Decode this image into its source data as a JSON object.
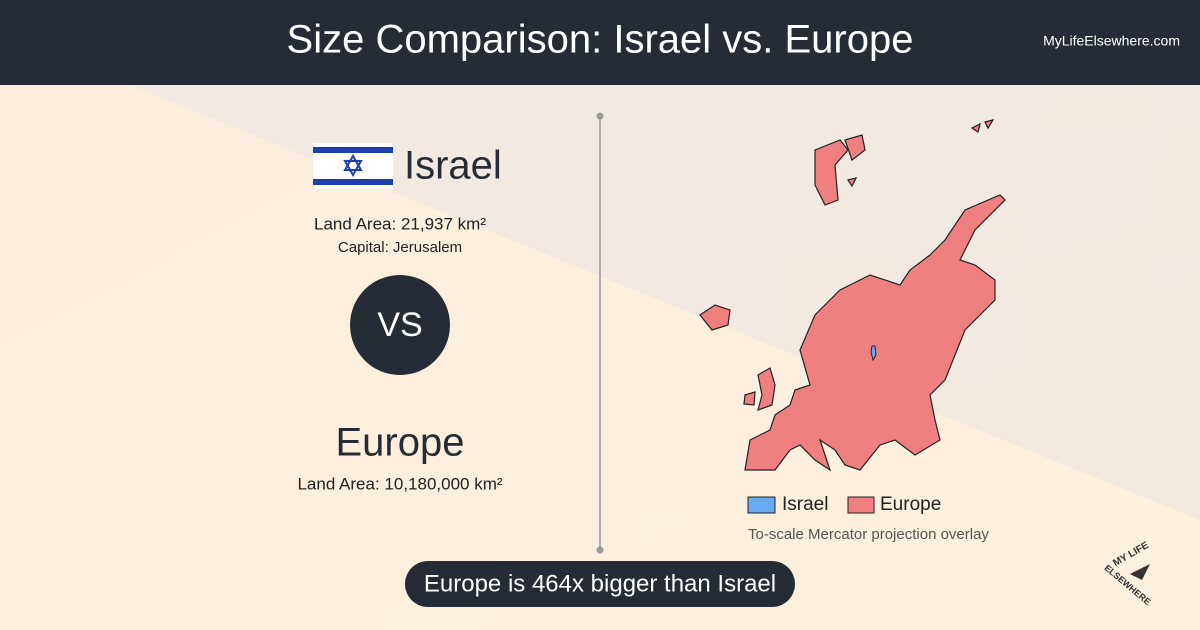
{
  "header": {
    "title": "Size Comparison: Israel vs. Europe",
    "site": "MyLifeElsewhere.com"
  },
  "first": {
    "name": "Israel",
    "land_area": "Land Area: 21,937 km²",
    "capital": "Capital: Jerusalem"
  },
  "versus": "VS",
  "second": {
    "name": "Europe",
    "land_area": "Land Area: 10,180,000 km²"
  },
  "legend": {
    "items": [
      "Israel",
      "Europe"
    ],
    "note": "To-scale Mercator projection overlay"
  },
  "footer": "Europe is 464x bigger than Israel",
  "logo": {
    "top": "MY LIFE",
    "bottom": "ELSEWHERE"
  }
}
